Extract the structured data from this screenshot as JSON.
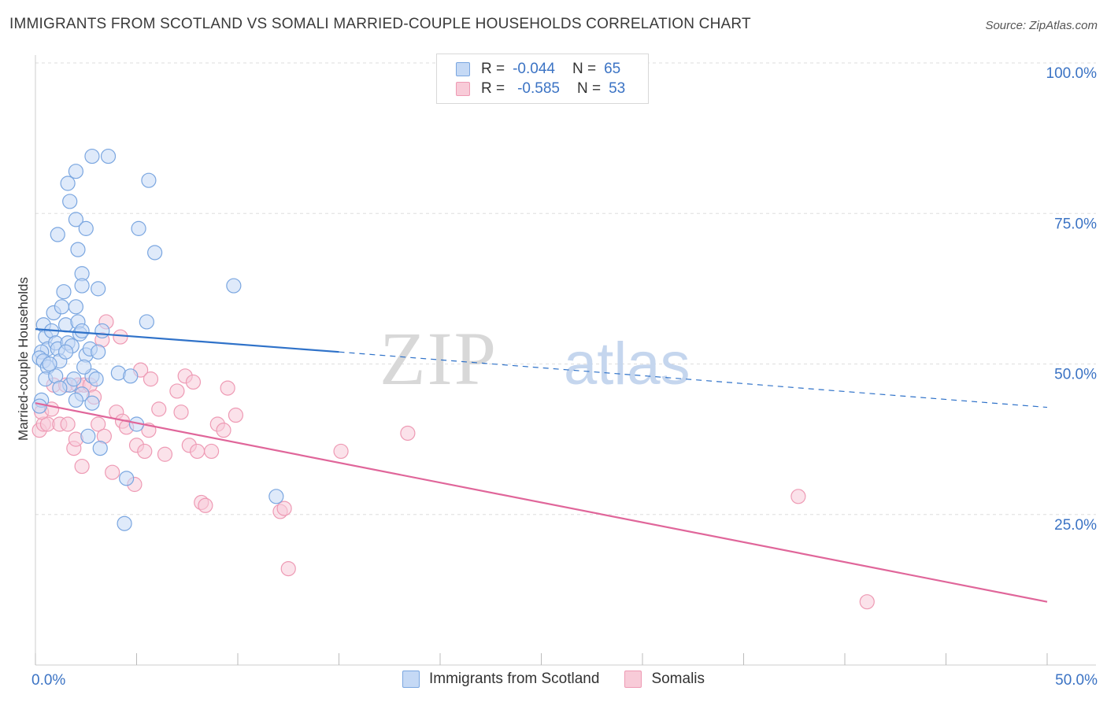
{
  "title": "IMMIGRANTS FROM SCOTLAND VS SOMALI MARRIED-COUPLE HOUSEHOLDS CORRELATION CHART",
  "source": "Source: ZipAtlas.com",
  "watermark": {
    "zip": "ZIP",
    "atlas": "atlas"
  },
  "legend": {
    "rows": [
      {
        "r_label": "R =",
        "r_value": "-0.044",
        "n_label": "N =",
        "n_value": "65"
      },
      {
        "r_label": "R =",
        "r_value": "-0.585",
        "n_label": "N =",
        "n_value": "53"
      }
    ]
  },
  "colors": {
    "scotland_fill": "#c5d9f5",
    "scotland_stroke": "#7aa6e0",
    "scotland_line": "#2f72c9",
    "somali_fill": "#f8cbd8",
    "somali_stroke": "#ee9ab4",
    "somali_line": "#e0669a",
    "tick_label": "#3b73c4",
    "grid": "#dddddd"
  },
  "chart_data": {
    "type": "scatter",
    "title": "IMMIGRANTS FROM SCOTLAND VS SOMALI MARRIED-COUPLE HOUSEHOLDS CORRELATION CHART",
    "xlabel": "",
    "ylabel": "Married-couple Households",
    "xlim": [
      0,
      50
    ],
    "ylim": [
      0,
      100
    ],
    "x_tick_labels": [
      "0.0%",
      "50.0%"
    ],
    "y_ticks": [
      25,
      50,
      75,
      100
    ],
    "y_tick_labels": [
      "25.0%",
      "50.0%",
      "75.0%",
      "100.0%"
    ],
    "series": [
      {
        "name": "Immigrants from Scotland",
        "trend": {
          "x": [
            0,
            15
          ],
          "y": [
            55.8,
            52.0
          ],
          "dashed_to_x": 50,
          "dashed_y_end": 42.8
        },
        "points": [
          [
            0.4,
            56.5
          ],
          [
            0.5,
            54.5
          ],
          [
            0.6,
            52.5
          ],
          [
            0.3,
            52.0
          ],
          [
            0.2,
            51.0
          ],
          [
            0.4,
            50.5
          ],
          [
            0.6,
            49.5
          ],
          [
            0.5,
            47.5
          ],
          [
            0.3,
            44.0
          ],
          [
            0.2,
            43.0
          ],
          [
            0.8,
            55.5
          ],
          [
            0.9,
            58.5
          ],
          [
            1.0,
            53.5
          ],
          [
            1.1,
            52.5
          ],
          [
            1.2,
            50.5
          ],
          [
            1.0,
            48.0
          ],
          [
            1.3,
            59.5
          ],
          [
            1.4,
            62.0
          ],
          [
            1.5,
            56.5
          ],
          [
            1.6,
            53.5
          ],
          [
            1.8,
            53.0
          ],
          [
            1.7,
            46.5
          ],
          [
            1.9,
            47.5
          ],
          [
            1.6,
            80.0
          ],
          [
            1.7,
            77.0
          ],
          [
            2.0,
            59.5
          ],
          [
            2.1,
            57.0
          ],
          [
            2.2,
            55.0
          ],
          [
            2.3,
            55.5
          ],
          [
            2.5,
            51.5
          ],
          [
            2.3,
            45.0
          ],
          [
            2.0,
            44.0
          ],
          [
            2.0,
            82.0
          ],
          [
            2.0,
            74.0
          ],
          [
            2.1,
            69.0
          ],
          [
            1.1,
            71.5
          ],
          [
            2.5,
            72.5
          ],
          [
            2.3,
            65.0
          ],
          [
            2.3,
            63.0
          ],
          [
            2.7,
            52.5
          ],
          [
            2.8,
            48.0
          ],
          [
            2.8,
            43.5
          ],
          [
            3.0,
            47.5
          ],
          [
            3.1,
            62.5
          ],
          [
            3.1,
            52.0
          ],
          [
            2.6,
            38.0
          ],
          [
            3.2,
            36.0
          ],
          [
            3.3,
            55.5
          ],
          [
            2.8,
            84.5
          ],
          [
            3.6,
            84.5
          ],
          [
            4.1,
            48.5
          ],
          [
            4.4,
            23.5
          ],
          [
            4.5,
            31.0
          ],
          [
            4.7,
            48.0
          ],
          [
            5.0,
            40.0
          ],
          [
            5.1,
            72.5
          ],
          [
            5.5,
            57.0
          ],
          [
            5.6,
            80.5
          ],
          [
            5.9,
            68.5
          ],
          [
            9.8,
            63.0
          ],
          [
            11.9,
            28.0
          ],
          [
            1.2,
            46.0
          ],
          [
            0.7,
            50.0
          ],
          [
            1.5,
            52.0
          ],
          [
            2.4,
            49.5
          ]
        ]
      },
      {
        "name": "Somalis",
        "trend": {
          "x": [
            0,
            50
          ],
          "y": [
            43.5,
            10.5
          ]
        },
        "points": [
          [
            0.2,
            39.0
          ],
          [
            0.4,
            40.0
          ],
          [
            0.6,
            40.0
          ],
          [
            0.3,
            42.0
          ],
          [
            0.8,
            42.5
          ],
          [
            0.9,
            46.5
          ],
          [
            1.2,
            40.0
          ],
          [
            1.5,
            46.5
          ],
          [
            1.6,
            40.0
          ],
          [
            1.9,
            36.0
          ],
          [
            2.0,
            37.5
          ],
          [
            2.1,
            46.5
          ],
          [
            2.3,
            33.0
          ],
          [
            2.4,
            46.5
          ],
          [
            2.7,
            46.5
          ],
          [
            2.9,
            44.5
          ],
          [
            3.1,
            40.0
          ],
          [
            3.3,
            54.0
          ],
          [
            3.4,
            38.0
          ],
          [
            3.5,
            57.0
          ],
          [
            3.8,
            32.0
          ],
          [
            4.0,
            42.0
          ],
          [
            4.2,
            54.5
          ],
          [
            4.3,
            40.5
          ],
          [
            4.5,
            39.5
          ],
          [
            4.9,
            30.0
          ],
          [
            5.0,
            36.5
          ],
          [
            5.2,
            49.0
          ],
          [
            5.4,
            35.5
          ],
          [
            5.6,
            39.0
          ],
          [
            5.7,
            47.5
          ],
          [
            6.1,
            42.5
          ],
          [
            6.4,
            35.0
          ],
          [
            7.0,
            45.5
          ],
          [
            7.2,
            42.0
          ],
          [
            7.4,
            48.0
          ],
          [
            7.6,
            36.5
          ],
          [
            7.8,
            47.0
          ],
          [
            8.0,
            35.5
          ],
          [
            8.2,
            27.0
          ],
          [
            8.4,
            26.5
          ],
          [
            8.7,
            35.5
          ],
          [
            9.0,
            40.0
          ],
          [
            9.3,
            39.0
          ],
          [
            9.5,
            46.0
          ],
          [
            9.9,
            41.5
          ],
          [
            12.1,
            25.5
          ],
          [
            12.3,
            26.0
          ],
          [
            12.5,
            16.0
          ],
          [
            15.1,
            35.5
          ],
          [
            18.4,
            38.5
          ],
          [
            37.7,
            28.0
          ],
          [
            41.1,
            10.5
          ]
        ]
      }
    ]
  }
}
